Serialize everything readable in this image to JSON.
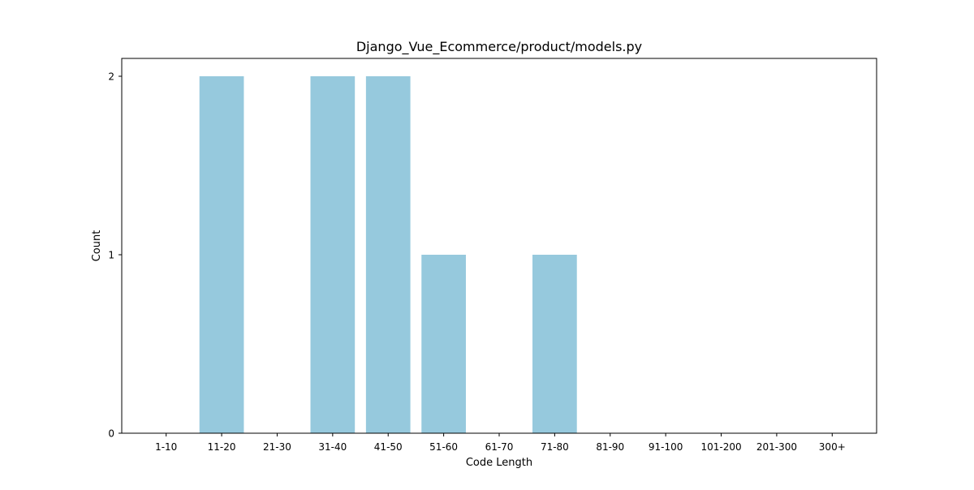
{
  "chart_data": {
    "type": "bar",
    "title": "Django_Vue_Ecommerce/product/models.py",
    "xlabel": "Code Length",
    "ylabel": "Count",
    "categories": [
      "1-10",
      "11-20",
      "21-30",
      "31-40",
      "41-50",
      "51-60",
      "61-70",
      "71-80",
      "81-90",
      "91-100",
      "101-200",
      "201-300",
      "300+"
    ],
    "values": [
      0,
      2,
      0,
      2,
      2,
      1,
      0,
      1,
      0,
      0,
      0,
      0,
      0
    ],
    "ylim": [
      0,
      2.1
    ],
    "yticks": [
      0,
      1,
      2
    ],
    "grid": false,
    "legend": "none",
    "bar_color": "#96c9dd"
  }
}
